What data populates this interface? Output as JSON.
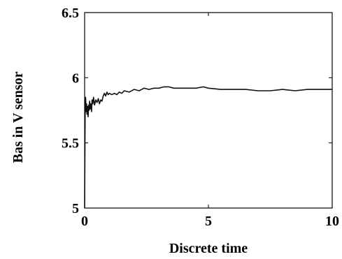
{
  "chart_data": {
    "type": "line",
    "title": "",
    "xlabel": "Discrete time",
    "ylabel": "Bas in V sensor",
    "xlim": [
      0,
      10
    ],
    "ylim": [
      5,
      6.5
    ],
    "x_ticks": [
      "0",
      "5",
      "10"
    ],
    "y_ticks": [
      "5",
      "5.5",
      "6",
      "6.5"
    ],
    "grid": false,
    "series": [
      {
        "color": "#111111",
        "points": [
          [
            0.0,
            5.0
          ],
          [
            0.02,
            5.7
          ],
          [
            0.04,
            5.85
          ],
          [
            0.06,
            5.74
          ],
          [
            0.08,
            5.8
          ],
          [
            0.1,
            5.72
          ],
          [
            0.12,
            5.78
          ],
          [
            0.14,
            5.7
          ],
          [
            0.16,
            5.79
          ],
          [
            0.18,
            5.75
          ],
          [
            0.2,
            5.82
          ],
          [
            0.22,
            5.76
          ],
          [
            0.25,
            5.8
          ],
          [
            0.28,
            5.74
          ],
          [
            0.3,
            5.83
          ],
          [
            0.33,
            5.8
          ],
          [
            0.36,
            5.85
          ],
          [
            0.4,
            5.79
          ],
          [
            0.45,
            5.83
          ],
          [
            0.5,
            5.81
          ],
          [
            0.55,
            5.84
          ],
          [
            0.6,
            5.8
          ],
          [
            0.65,
            5.83
          ],
          [
            0.7,
            5.82
          ],
          [
            0.75,
            5.86
          ],
          [
            0.8,
            5.88
          ],
          [
            0.85,
            5.86
          ],
          [
            0.9,
            5.89
          ],
          [
            0.95,
            5.87
          ],
          [
            1.0,
            5.88
          ],
          [
            1.1,
            5.87
          ],
          [
            1.2,
            5.88
          ],
          [
            1.3,
            5.87
          ],
          [
            1.4,
            5.89
          ],
          [
            1.5,
            5.88
          ],
          [
            1.6,
            5.9
          ],
          [
            1.8,
            5.89
          ],
          [
            2.0,
            5.91
          ],
          [
            2.2,
            5.9
          ],
          [
            2.4,
            5.92
          ],
          [
            2.6,
            5.91
          ],
          [
            2.8,
            5.92
          ],
          [
            3.0,
            5.92
          ],
          [
            3.2,
            5.93
          ],
          [
            3.4,
            5.93
          ],
          [
            3.6,
            5.92
          ],
          [
            4.0,
            5.92
          ],
          [
            4.5,
            5.92
          ],
          [
            4.8,
            5.93
          ],
          [
            5.0,
            5.92
          ],
          [
            5.5,
            5.91
          ],
          [
            6.0,
            5.91
          ],
          [
            6.5,
            5.91
          ],
          [
            7.0,
            5.9
          ],
          [
            7.5,
            5.9
          ],
          [
            8.0,
            5.91
          ],
          [
            8.5,
            5.9
          ],
          [
            9.0,
            5.91
          ],
          [
            9.5,
            5.91
          ],
          [
            10.0,
            5.91
          ]
        ]
      }
    ]
  }
}
